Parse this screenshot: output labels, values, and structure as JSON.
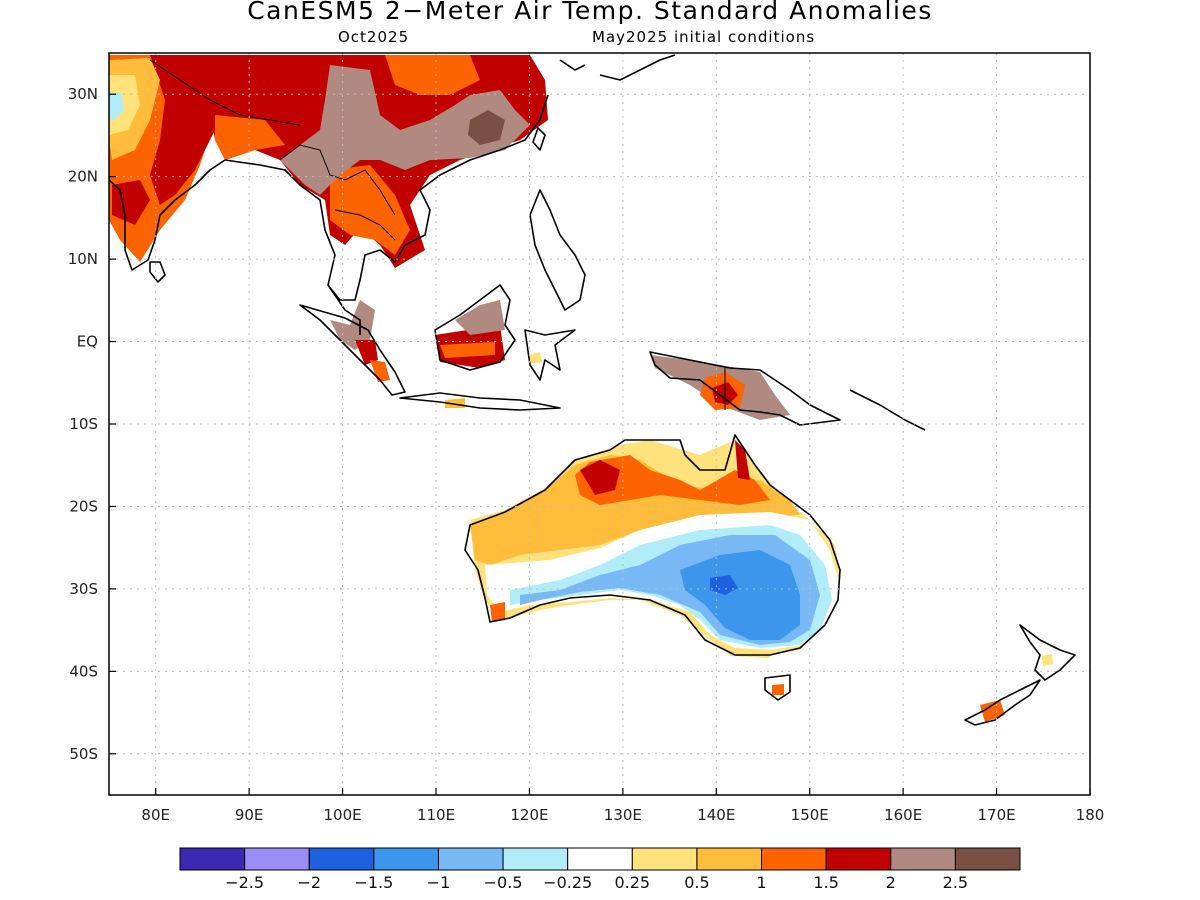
{
  "title": "CanESM5 2−Meter Air Temp. Standard Anomalies",
  "subtitle_left": "Oct2025",
  "subtitle_right": "May2025 initial conditions",
  "map": {
    "lon_range": [
      75,
      180
    ],
    "lat_range": [
      -55,
      35
    ],
    "lat_ticks": [
      {
        "v": 30,
        "label": "30N"
      },
      {
        "v": 20,
        "label": "20N"
      },
      {
        "v": 10,
        "label": "10N"
      },
      {
        "v": 0,
        "label": "EQ"
      },
      {
        "v": -10,
        "label": "10S"
      },
      {
        "v": -20,
        "label": "20S"
      },
      {
        "v": -30,
        "label": "30S"
      },
      {
        "v": -40,
        "label": "40S"
      },
      {
        "v": -50,
        "label": "50S"
      }
    ],
    "lon_ticks": [
      {
        "v": 80,
        "label": "80E"
      },
      {
        "v": 90,
        "label": "90E"
      },
      {
        "v": 100,
        "label": "100E"
      },
      {
        "v": 110,
        "label": "110E"
      },
      {
        "v": 120,
        "label": "120E"
      },
      {
        "v": 130,
        "label": "130E"
      },
      {
        "v": 140,
        "label": "140E"
      },
      {
        "v": 150,
        "label": "150E"
      },
      {
        "v": 160,
        "label": "160E"
      },
      {
        "v": 170,
        "label": "170E"
      },
      {
        "v": 180,
        "label": "180"
      }
    ],
    "grid": true
  },
  "colorbar": {
    "colors": [
      "#3d28b4",
      "#9c8cf5",
      "#1c61e0",
      "#3c96ec",
      "#78b8f5",
      "#b0edf8",
      "#ffffff",
      "#ffe27c",
      "#ffbd3b",
      "#fd6300",
      "#c10000",
      "#b08a80",
      "#7a5045"
    ],
    "labels": [
      "−2.5",
      "−2",
      "−1.5",
      "−1",
      "−0.5",
      "−0.25",
      "0.25",
      "0.5",
      "1",
      "1.5",
      "2",
      "2.5"
    ]
  }
}
